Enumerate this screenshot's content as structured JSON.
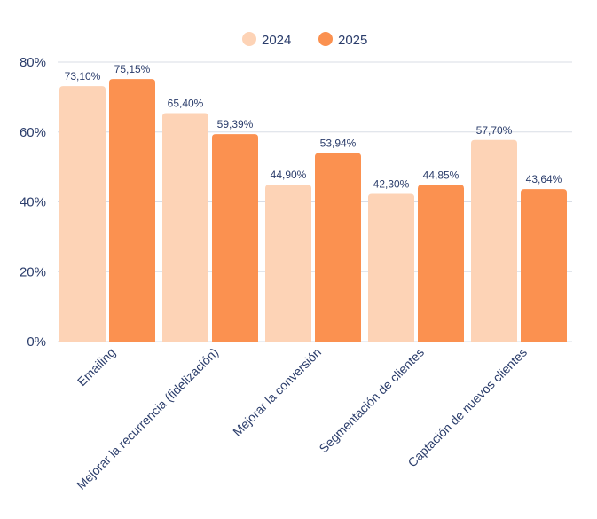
{
  "chart_data": {
    "type": "bar",
    "categories": [
      "Emailing",
      "Mejorar la recurrencia (fidelización)",
      "Mejorar la conversión",
      "Segmentación de clientes",
      "Captación de nuevos clientes"
    ],
    "series": [
      {
        "name": "2024",
        "color": "#fdd3b6",
        "values": [
          73.1,
          65.4,
          44.9,
          42.3,
          57.7
        ],
        "labels": [
          "73,10%",
          "65,40%",
          "44,90%",
          "42,30%",
          "57,70%"
        ]
      },
      {
        "name": "2025",
        "color": "#fb9150",
        "values": [
          75.15,
          59.39,
          53.94,
          44.85,
          43.64
        ],
        "labels": [
          "75,15%",
          "59,39%",
          "53,94%",
          "44,85%",
          "43,64%"
        ]
      }
    ],
    "y_ticks": [
      "0%",
      "20%",
      "40%",
      "60%",
      "80%"
    ],
    "y_tick_values": [
      0,
      20,
      40,
      60,
      80
    ],
    "ylim": [
      0,
      80
    ],
    "grid": true,
    "legend_position": "top-center",
    "text_color": "#2b3d6b",
    "grid_color": "#d9dde6"
  }
}
